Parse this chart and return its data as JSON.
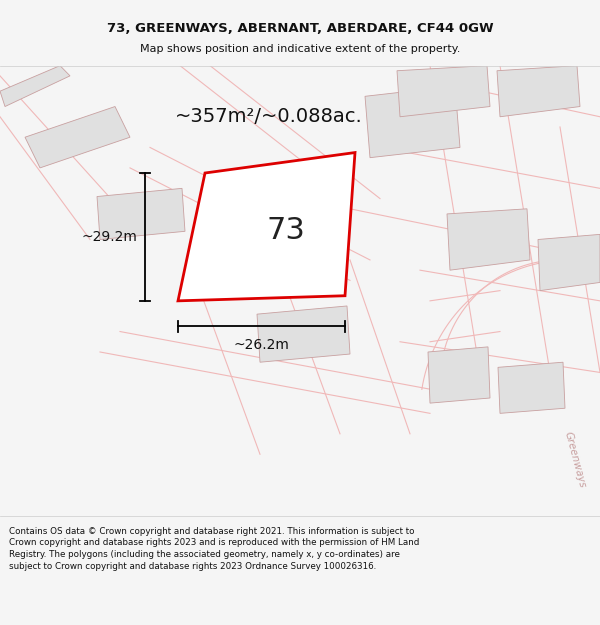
{
  "title": "73, GREENWAYS, ABERNANT, ABERDARE, CF44 0GW",
  "subtitle": "Map shows position and indicative extent of the property.",
  "footer": "Contains OS data © Crown copyright and database right 2021. This information is subject to Crown copyright and database rights 2023 and is reproduced with the permission of HM Land Registry. The polygons (including the associated geometry, namely x, y co-ordinates) are subject to Crown copyright and database rights 2023 Ordnance Survey 100026316.",
  "area_label": "~357m²/~0.088ac.",
  "width_label": "~26.2m",
  "height_label": "~29.2m",
  "plot_number": "73",
  "map_bg": "#ffffff",
  "plot_color": "#dd0000",
  "plot_fill": "#ffffff",
  "road_label": "Greenways",
  "road_label_color": "#c8a0a0",
  "neighbor_fill": "#e0e0e0",
  "neighbor_line": "#c8a0a0",
  "road_line_color": "#f0b8b8",
  "title_sep_color": "#cccccc",
  "footer_bg": "#ffffff",
  "map_area_bg": "#ffffff"
}
